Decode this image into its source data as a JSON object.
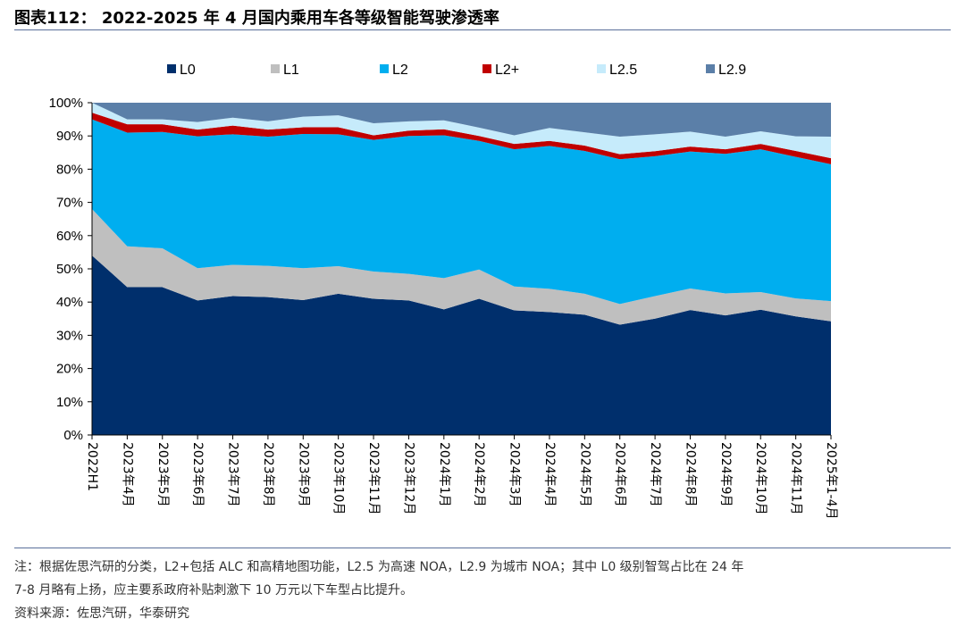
{
  "header": {
    "title": "图表112： 2022-2025 年 4 月国内乘用车各等级智能驾驶渗透率"
  },
  "footer": {
    "note_line1": "注：根据佐思汽研的分类，L2+包括 ALC 和高精地图功能，L2.5 为高速 NOA，L2.9 为城市 NOA；其中 L0 级别智驾占比在 24 年",
    "note_line2": "7-8 月略有上扬，应主要系政府补贴刺激下 10 万元以下车型占比提升。",
    "source": "资料来源：佐思汽研，华泰研究"
  },
  "chart_data": {
    "type": "area",
    "stacked": true,
    "title": "",
    "xlabel": "",
    "ylabel": "",
    "ylim": [
      0,
      100
    ],
    "y_unit": "%",
    "y_ticks": [
      "0%",
      "10%",
      "20%",
      "30%",
      "40%",
      "50%",
      "60%",
      "70%",
      "80%",
      "90%",
      "100%"
    ],
    "grid": false,
    "legend": "top",
    "categories": [
      "2022H1",
      "2023年4月",
      "2023年5月",
      "2023年6月",
      "2023年7月",
      "2023年8月",
      "2023年9月",
      "2023年10月",
      "2023年11月",
      "2023年12月",
      "2024年1月",
      "2024年2月",
      "2024年3月",
      "2024年4月",
      "2024年5月",
      "2024年6月",
      "2024年7月",
      "2024年8月",
      "2024年9月",
      "2024年10月",
      "2024年11月",
      "2025年1-4月"
    ],
    "series": [
      {
        "name": "L0",
        "color": "#002f6c",
        "values": [
          54,
          44.5,
          44.5,
          40.5,
          41.8,
          41.5,
          40.6,
          42.5,
          41,
          40.5,
          37.8,
          41,
          37.5,
          37,
          36.2,
          33.2,
          35,
          37.6,
          36,
          37.7,
          35.7,
          34.2
        ]
      },
      {
        "name": "L1",
        "color": "#bfbfbf",
        "values": [
          14,
          12.3,
          11.7,
          9.7,
          9.4,
          9.4,
          9.6,
          8.3,
          8.2,
          8,
          9.4,
          8.8,
          7.2,
          7,
          6.3,
          6.2,
          6.8,
          6.5,
          6.6,
          5.3,
          5.4,
          6.1
        ]
      },
      {
        "name": "L2",
        "color": "#00aeef",
        "values": [
          27,
          34.2,
          35,
          39.7,
          39.3,
          38.9,
          40.4,
          39.7,
          39.6,
          41.5,
          43,
          38.7,
          41.3,
          43,
          43,
          43.6,
          42.1,
          41.2,
          42,
          43,
          42.6,
          41.2
        ]
      },
      {
        "name": "L2+",
        "color": "#c00000",
        "values": [
          2,
          2.5,
          2.3,
          2,
          2.6,
          2.1,
          2,
          2.1,
          1.4,
          1.6,
          1.8,
          1.5,
          1.6,
          1.5,
          1.6,
          1.5,
          1.5,
          1.5,
          1.4,
          1.6,
          1.8,
          1.8
        ]
      },
      {
        "name": "L2.5",
        "color": "#c6ebfb",
        "values": [
          3,
          1.5,
          1.5,
          2.3,
          2.4,
          2.5,
          3.2,
          3.6,
          3.6,
          2.8,
          2.7,
          2.5,
          2.6,
          3.9,
          4,
          5.3,
          5.1,
          4.5,
          3.8,
          3.8,
          4.4,
          6.5
        ]
      },
      {
        "name": "L2.9",
        "color": "#5b7fa8",
        "values": [
          0,
          5,
          5,
          5.8,
          4.5,
          5.6,
          4.2,
          3.8,
          6.2,
          5.6,
          5.3,
          7.5,
          9.8,
          7.6,
          8.9,
          10.2,
          9.5,
          8.7,
          10.2,
          8.6,
          10.1,
          10.2
        ]
      }
    ]
  }
}
